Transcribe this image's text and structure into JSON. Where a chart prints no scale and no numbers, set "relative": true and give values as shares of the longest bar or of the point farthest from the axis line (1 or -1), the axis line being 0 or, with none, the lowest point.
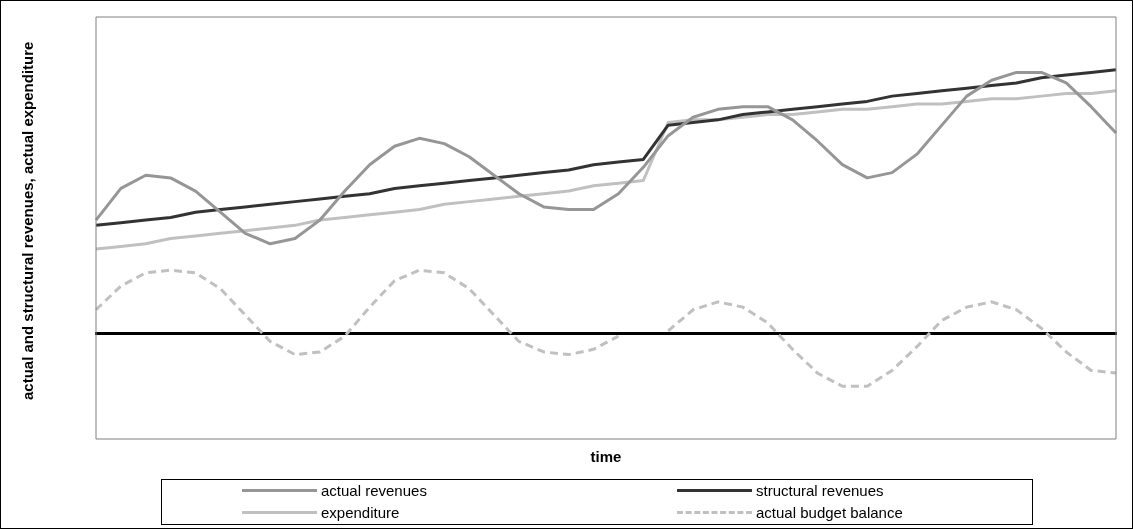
{
  "chart_data": {
    "type": "line",
    "relative": true,
    "xlabel": "time",
    "ylabel": "actual and structural revenues, actual expenditure",
    "legend": "bottom",
    "grid": false,
    "marker": "none",
    "categories": [
      null,
      null,
      null,
      null,
      null,
      null,
      null,
      null,
      null,
      null,
      null,
      null,
      null,
      null,
      null,
      null,
      null,
      null,
      null,
      null,
      null,
      null,
      null,
      null,
      null,
      null,
      null,
      null,
      null,
      null,
      null,
      null,
      null,
      null,
      null,
      null,
      null,
      null,
      null,
      null,
      null,
      null
    ],
    "series": [
      {
        "name": "actual revenues",
        "color": "#969696",
        "values": [
          0.43,
          0.55,
          0.6,
          0.59,
          0.54,
          0.46,
          0.38,
          0.34,
          0.36,
          0.43,
          0.54,
          0.64,
          0.71,
          0.74,
          0.72,
          0.67,
          0.6,
          0.53,
          0.48,
          0.47,
          0.47,
          0.53,
          0.63,
          0.75,
          0.82,
          0.85,
          0.86,
          0.86,
          0.81,
          0.73,
          0.64,
          0.59,
          0.61,
          0.68,
          0.79,
          0.9,
          0.96,
          0.99,
          0.99,
          0.95,
          0.86,
          0.76
        ]
      },
      {
        "name": "structural revenues",
        "color": "#333333",
        "values": [
          0.41,
          0.42,
          0.43,
          0.44,
          0.46,
          0.47,
          0.48,
          0.49,
          0.5,
          0.51,
          0.52,
          0.53,
          0.55,
          0.56,
          0.57,
          0.58,
          0.59,
          0.6,
          0.61,
          0.62,
          0.64,
          0.65,
          0.66,
          0.79,
          0.8,
          0.81,
          0.83,
          0.84,
          0.85,
          0.86,
          0.87,
          0.88,
          0.9,
          0.91,
          0.92,
          0.93,
          0.94,
          0.95,
          0.97,
          0.98,
          0.99,
          1.0
        ]
      },
      {
        "name": "expenditure",
        "color": "#c0c0c0",
        "values": [
          0.32,
          0.33,
          0.34,
          0.36,
          0.37,
          0.38,
          0.39,
          0.4,
          0.41,
          0.43,
          0.44,
          0.45,
          0.46,
          0.47,
          0.49,
          0.5,
          0.51,
          0.52,
          0.53,
          0.54,
          0.56,
          0.57,
          0.58,
          0.8,
          0.81,
          0.81,
          0.82,
          0.83,
          0.83,
          0.84,
          0.85,
          0.85,
          0.86,
          0.87,
          0.87,
          0.88,
          0.89,
          0.89,
          0.9,
          0.91,
          0.91,
          0.92
        ]
      },
      {
        "name": "actual budget balance",
        "color": "#c0c0c0",
        "line_style": "dashed",
        "values": [
          0.09,
          0.18,
          0.23,
          0.24,
          0.23,
          0.17,
          0.07,
          -0.03,
          -0.08,
          -0.07,
          -0.01,
          0.1,
          0.2,
          0.24,
          0.23,
          0.17,
          0.07,
          -0.03,
          -0.07,
          -0.08,
          -0.06,
          -0.01,
          null,
          0.01,
          0.09,
          0.12,
          0.1,
          0.04,
          -0.06,
          -0.15,
          -0.2,
          -0.2,
          -0.14,
          -0.05,
          0.05,
          0.1,
          0.12,
          0.09,
          0.02,
          -0.07,
          -0.14,
          -0.15
        ]
      }
    ]
  }
}
